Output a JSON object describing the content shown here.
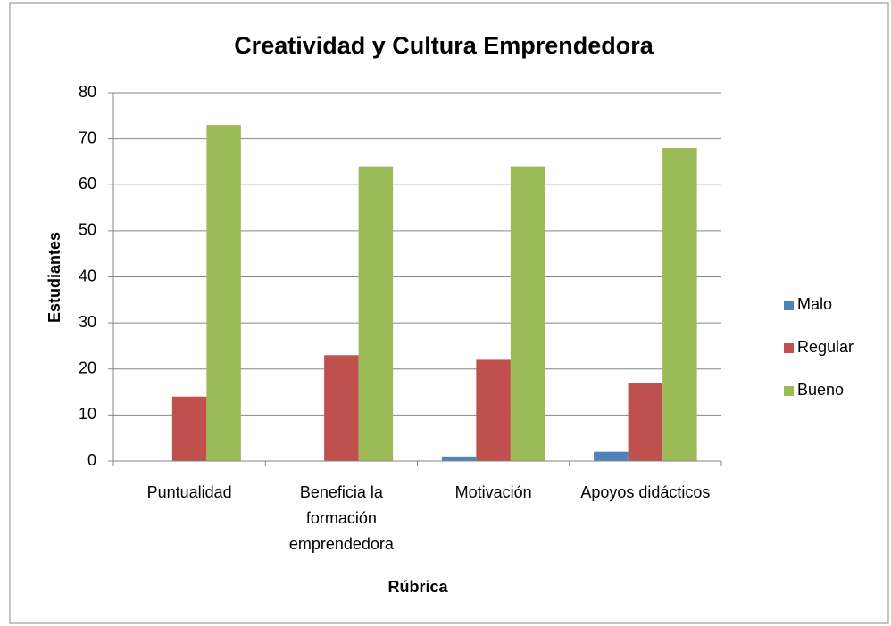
{
  "chart_data": {
    "type": "bar",
    "title": "Creatividad y Cultura Emprendedora",
    "x_label": "Rúbrica",
    "y_label": "Estudiantes",
    "categories": [
      "Puntualidad",
      "Beneficia la formación emprendedora",
      "Motivación",
      "Apoyos didácticos"
    ],
    "series": [
      {
        "name": "Malo",
        "color": "#4f81bd",
        "values": [
          0,
          0,
          1,
          2
        ]
      },
      {
        "name": "Regular",
        "color": "#c0504d",
        "values": [
          14,
          23,
          22,
          17
        ]
      },
      {
        "name": "Bueno",
        "color": "#9bbb59",
        "values": [
          73,
          64,
          64,
          68
        ]
      }
    ],
    "ylim": [
      0,
      80
    ],
    "yticks": [
      0,
      10,
      20,
      30,
      40,
      50,
      60,
      70,
      80
    ],
    "grid": true,
    "legend": "right"
  }
}
